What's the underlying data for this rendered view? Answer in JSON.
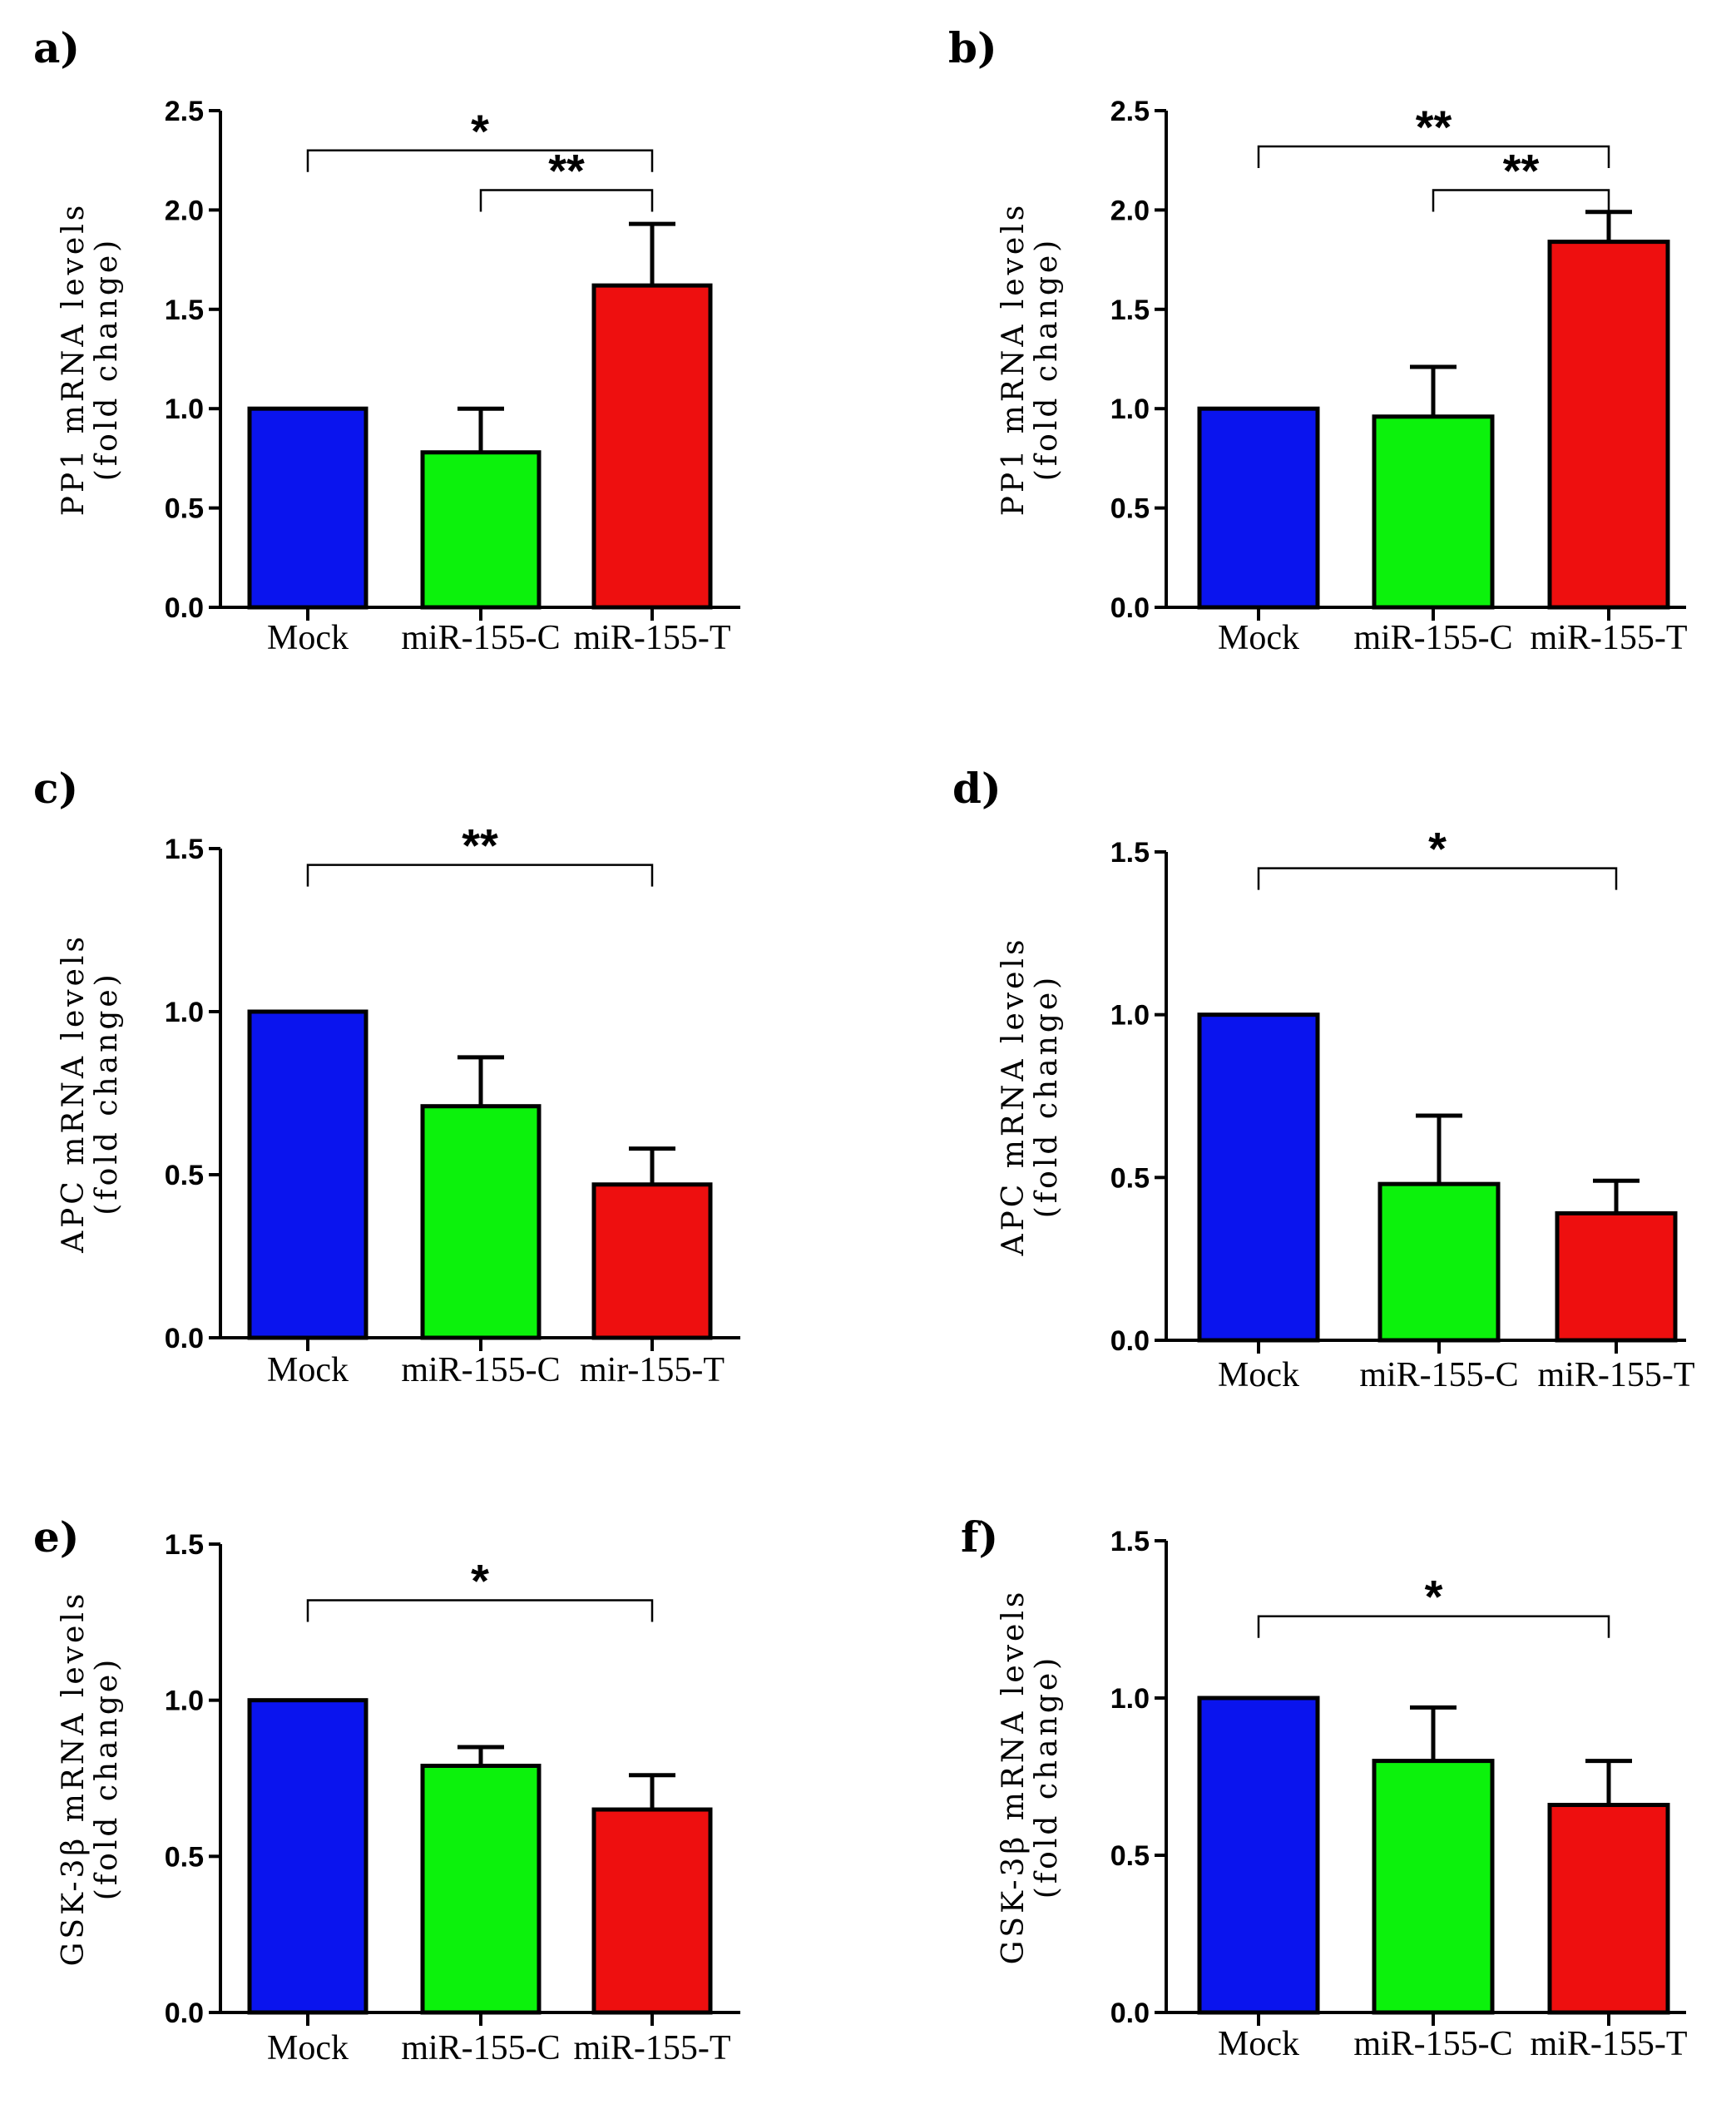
{
  "chart_data": [
    {
      "panel": "a)",
      "type": "bar",
      "ylabel_line1": "PP1 mRNA levels",
      "ylabel_line2": "(fold change)",
      "ylim": [
        0,
        2.5
      ],
      "yticks": [
        "0.0",
        "0.5",
        "1.0",
        "1.5",
        "2.0",
        "2.5"
      ],
      "categories": [
        "Mock",
        "miR-155-C",
        "miR-155-T"
      ],
      "values": [
        1.0,
        0.78,
        1.62
      ],
      "errors": [
        0.0,
        0.22,
        0.31
      ],
      "colors": [
        "#0a14ee",
        "#0cf20c",
        "#ee0f0f"
      ],
      "significance": [
        {
          "from": 0,
          "to": 2,
          "label": "*",
          "level": 2.3
        },
        {
          "from": 1,
          "to": 2,
          "label": "**",
          "level": 2.1
        }
      ]
    },
    {
      "panel": "b)",
      "type": "bar",
      "ylabel_line1": "PP1 mRNA levels",
      "ylabel_line2": "(fold change)",
      "ylim": [
        0,
        2.5
      ],
      "yticks": [
        "0.0",
        "0.5",
        "1.0",
        "1.5",
        "2.0",
        "2.5"
      ],
      "categories": [
        "Mock",
        "miR-155-C",
        "miR-155-T"
      ],
      "values": [
        1.0,
        0.96,
        1.84
      ],
      "errors": [
        0.0,
        0.25,
        0.15
      ],
      "colors": [
        "#0a14ee",
        "#0cf20c",
        "#ee0f0f"
      ],
      "significance": [
        {
          "from": 0,
          "to": 2,
          "label": "**",
          "level": 2.32
        },
        {
          "from": 1,
          "to": 2,
          "label": "**",
          "level": 2.1
        }
      ]
    },
    {
      "panel": "c)",
      "type": "bar",
      "ylabel_line1": "APC mRNA levels",
      "ylabel_line2": "(fold change)",
      "ylim": [
        0,
        1.5
      ],
      "yticks": [
        "0.0",
        "0.5",
        "1.0",
        "1.5"
      ],
      "categories": [
        "Mock",
        "miR-155-C",
        "mir-155-T"
      ],
      "values": [
        1.0,
        0.71,
        0.47
      ],
      "errors": [
        0.0,
        0.15,
        0.11
      ],
      "colors": [
        "#0a14ee",
        "#0cf20c",
        "#ee0f0f"
      ],
      "significance": [
        {
          "from": 0,
          "to": 2,
          "label": "**",
          "level": 1.45
        }
      ]
    },
    {
      "panel": "d)",
      "type": "bar",
      "ylabel_line1": "APC mRNA levels",
      "ylabel_line2": "(fold change)",
      "ylim": [
        0,
        1.5
      ],
      "yticks": [
        "0.0",
        "0.5",
        "1.0",
        "1.5"
      ],
      "categories": [
        "Mock",
        "miR-155-C",
        "miR-155-T"
      ],
      "values": [
        1.0,
        0.48,
        0.39
      ],
      "errors": [
        0.0,
        0.21,
        0.1
      ],
      "colors": [
        "#0a14ee",
        "#0cf20c",
        "#ee0f0f"
      ],
      "significance": [
        {
          "from": 0,
          "to": 2,
          "label": "*",
          "level": 1.45
        }
      ]
    },
    {
      "panel": "e)",
      "type": "bar",
      "ylabel_line1": "GSK-3β mRNA levels",
      "ylabel_line2": "(fold change)",
      "ylim": [
        0,
        1.5
      ],
      "yticks": [
        "0.0",
        "0.5",
        "1.0",
        "1.5"
      ],
      "categories": [
        "Mock",
        "miR-155-C",
        "miR-155-T"
      ],
      "values": [
        1.0,
        0.79,
        0.65
      ],
      "errors": [
        0.0,
        0.06,
        0.11
      ],
      "colors": [
        "#0a14ee",
        "#0cf20c",
        "#ee0f0f"
      ],
      "significance": [
        {
          "from": 0,
          "to": 2,
          "label": "*",
          "level": 1.32
        }
      ]
    },
    {
      "panel": "f)",
      "type": "bar",
      "ylabel_line1": "GSK-3β mRNA levels",
      "ylabel_line2": "(fold change)",
      "ylim": [
        0,
        1.5
      ],
      "yticks": [
        "0.0",
        "0.5",
        "1.0",
        "1.5"
      ],
      "categories": [
        "Mock",
        "miR-155-C",
        "miR-155-T"
      ],
      "values": [
        1.0,
        0.8,
        0.66
      ],
      "errors": [
        0.0,
        0.17,
        0.14
      ],
      "colors": [
        "#0a14ee",
        "#0cf20c",
        "#ee0f0f"
      ],
      "significance": [
        {
          "from": 0,
          "to": 2,
          "label": "*",
          "level": 1.26
        }
      ]
    }
  ]
}
